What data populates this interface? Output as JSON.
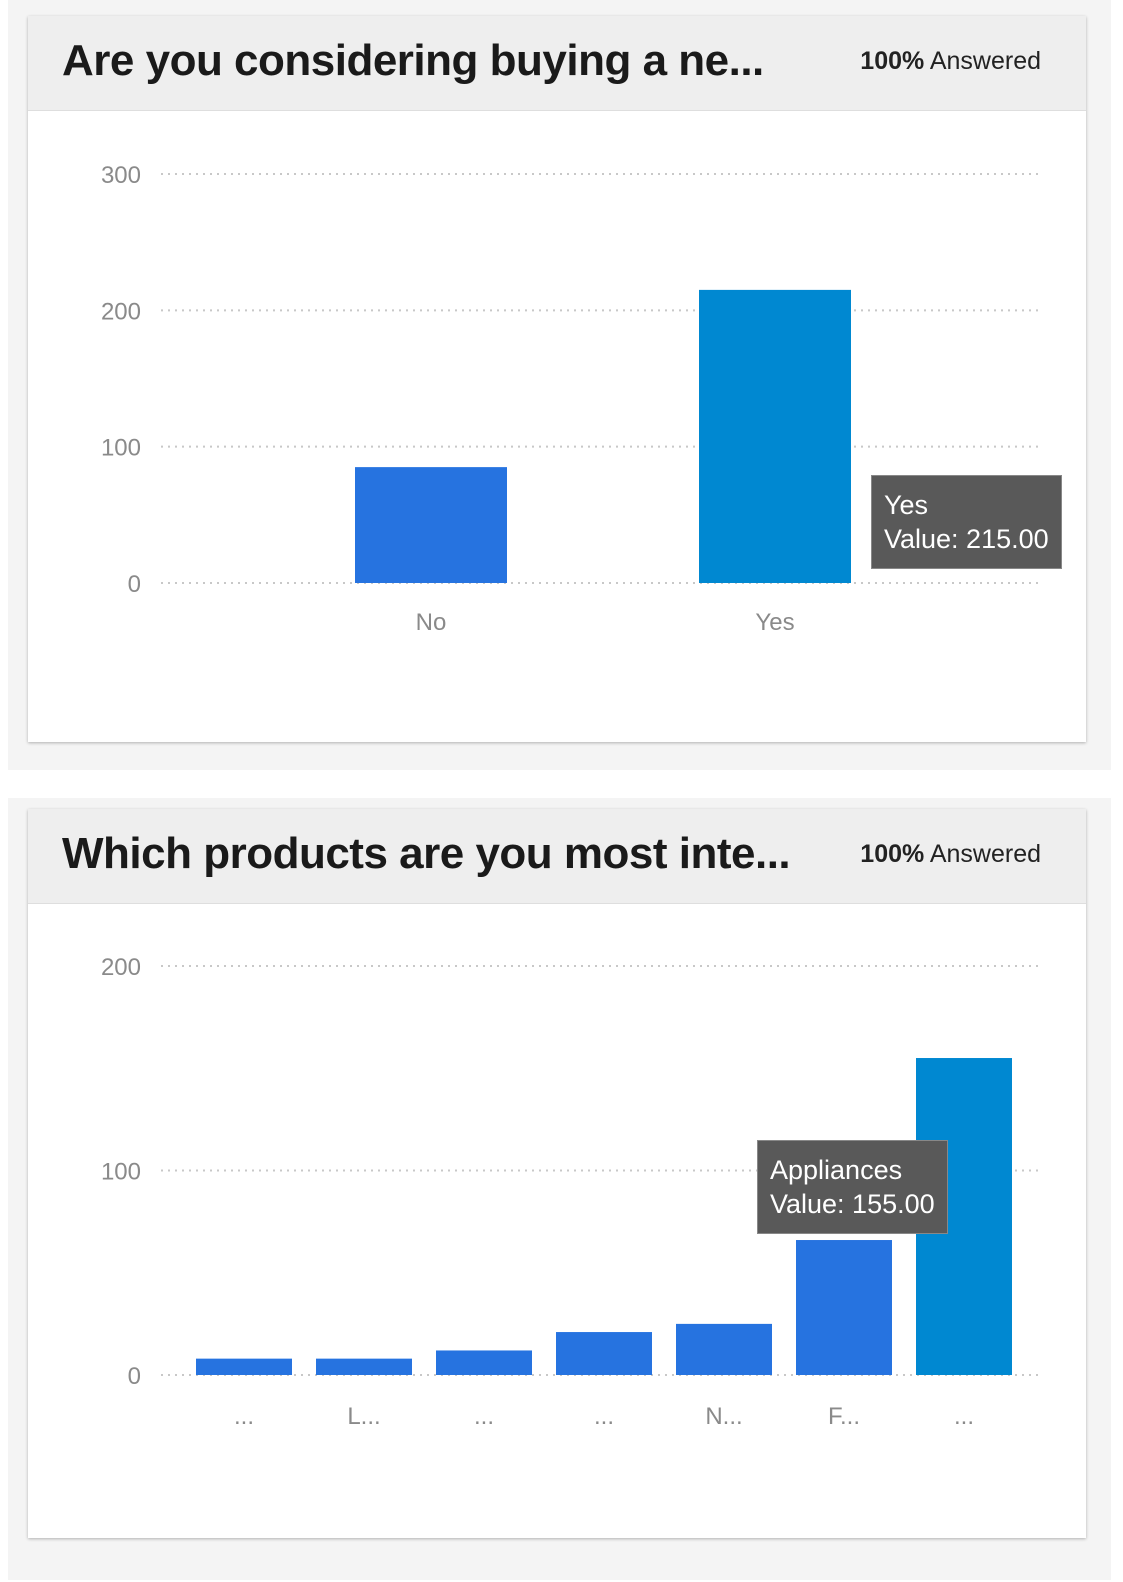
{
  "colors": {
    "bar": "#2673e0",
    "bar_highlight": "#0088d1",
    "grid": "#c8c8c8",
    "tick_text": "#8a8a8a"
  },
  "charts": [
    {
      "title": "Are you considering buying a ne...",
      "answered_pct": "100%",
      "answered_label": "Answered",
      "tooltip": {
        "label": "Yes",
        "value_text": "Value: 215.00"
      }
    },
    {
      "title": "Which products are you most inte...",
      "answered_pct": "100%",
      "answered_label": "Answered",
      "tooltip": {
        "label": "Appliances",
        "value_text": "Value: 155.00"
      }
    }
  ],
  "chart_data": [
    {
      "type": "bar",
      "title": "Are you considering buying a ne...",
      "categories": [
        "No",
        "Yes"
      ],
      "values": [
        85,
        215
      ],
      "highlighted_index": 1,
      "yticks": [
        0,
        100,
        200,
        300
      ],
      "ylim": [
        0,
        300
      ],
      "grid": true
    },
    {
      "type": "bar",
      "title": "Which products are you most inte...",
      "categories": [
        "...",
        "L...",
        "...",
        "...",
        "N...",
        "F...",
        "..."
      ],
      "values": [
        8,
        8,
        12,
        21,
        25,
        66,
        155
      ],
      "highlighted_index": 6,
      "yticks": [
        0,
        100,
        200
      ],
      "ylim": [
        0,
        200
      ],
      "grid": true
    }
  ]
}
